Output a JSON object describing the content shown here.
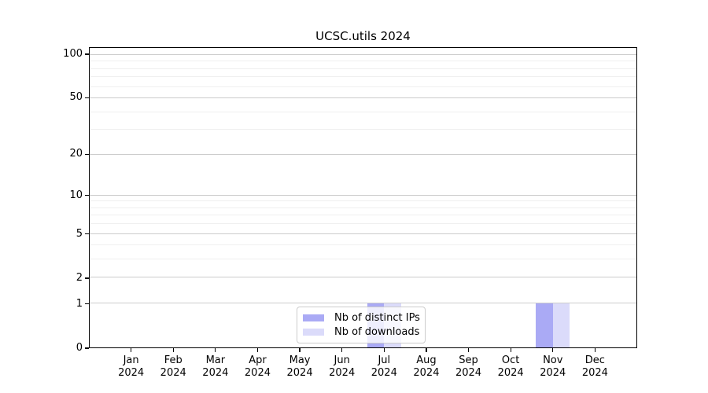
{
  "title": "UCSC.utils 2024",
  "colors": {
    "distinct_ips": "#aaaaf5",
    "downloads": "#dbdbfa",
    "grid_major": "#cccccc",
    "grid_minor": "#efefef",
    "axis": "#000000",
    "legend_border": "#cccccc"
  },
  "legend": {
    "items": [
      {
        "label": "Nb of distinct IPs",
        "color_key": "distinct_ips"
      },
      {
        "label": "Nb of downloads",
        "color_key": "downloads"
      }
    ]
  },
  "chart_data": {
    "type": "bar",
    "title": "UCSC.utils 2024",
    "categories": [
      {
        "month": "Jan",
        "year": "2024"
      },
      {
        "month": "Feb",
        "year": "2024"
      },
      {
        "month": "Mar",
        "year": "2024"
      },
      {
        "month": "Apr",
        "year": "2024"
      },
      {
        "month": "May",
        "year": "2024"
      },
      {
        "month": "Jun",
        "year": "2024"
      },
      {
        "month": "Jul",
        "year": "2024"
      },
      {
        "month": "Aug",
        "year": "2024"
      },
      {
        "month": "Sep",
        "year": "2024"
      },
      {
        "month": "Oct",
        "year": "2024"
      },
      {
        "month": "Nov",
        "year": "2024"
      },
      {
        "month": "Dec",
        "year": "2024"
      }
    ],
    "series": [
      {
        "name": "Nb of distinct IPs",
        "color_key": "distinct_ips",
        "values": [
          0,
          0,
          0,
          0,
          0,
          0,
          1,
          0,
          0,
          0,
          1,
          0
        ]
      },
      {
        "name": "Nb of downloads",
        "color_key": "downloads",
        "values": [
          0,
          0,
          0,
          0,
          0,
          0,
          1,
          0,
          0,
          0,
          1,
          0
        ]
      }
    ],
    "xlabel": "",
    "ylabel": "",
    "yscale": "log1p",
    "ylim": [
      0,
      112
    ],
    "yticks_major": [
      0,
      1,
      2,
      5,
      10,
      20,
      50,
      100
    ],
    "yticks_minor": [
      3,
      4,
      6,
      7,
      8,
      9,
      30,
      40,
      60,
      70,
      80,
      90
    ],
    "grid": true,
    "legend_position": "lower center"
  }
}
